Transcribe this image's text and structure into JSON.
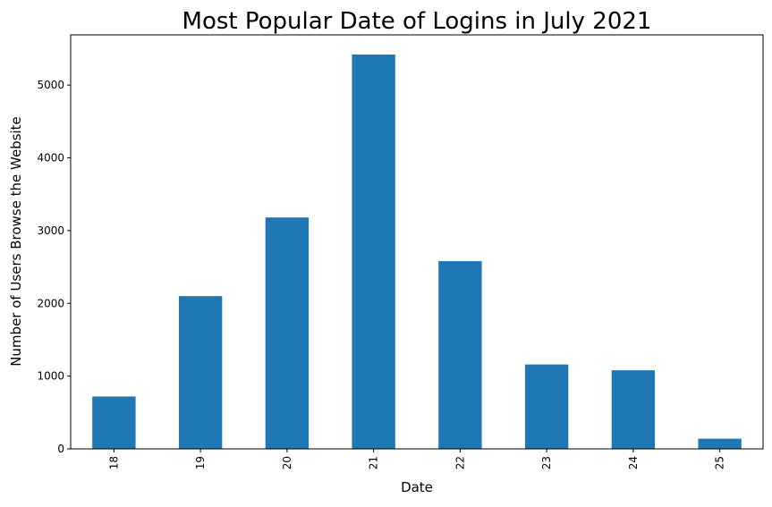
{
  "chart_data": {
    "type": "bar",
    "title": "Most Popular Date of Logins in July 2021",
    "xlabel": "Date",
    "ylabel": "Number of Users Browse the Website",
    "categories": [
      "18",
      "19",
      "20",
      "21",
      "22",
      "23",
      "24",
      "25"
    ],
    "values": [
      720,
      2100,
      3180,
      5420,
      2580,
      1160,
      1080,
      140
    ],
    "ylim": [
      0,
      5690
    ],
    "yticks": [
      0,
      1000,
      2000,
      3000,
      4000,
      5000
    ],
    "bar_color": "#1f77b4",
    "grid": false,
    "legend": false,
    "x_tick_rotation": "vertical"
  }
}
